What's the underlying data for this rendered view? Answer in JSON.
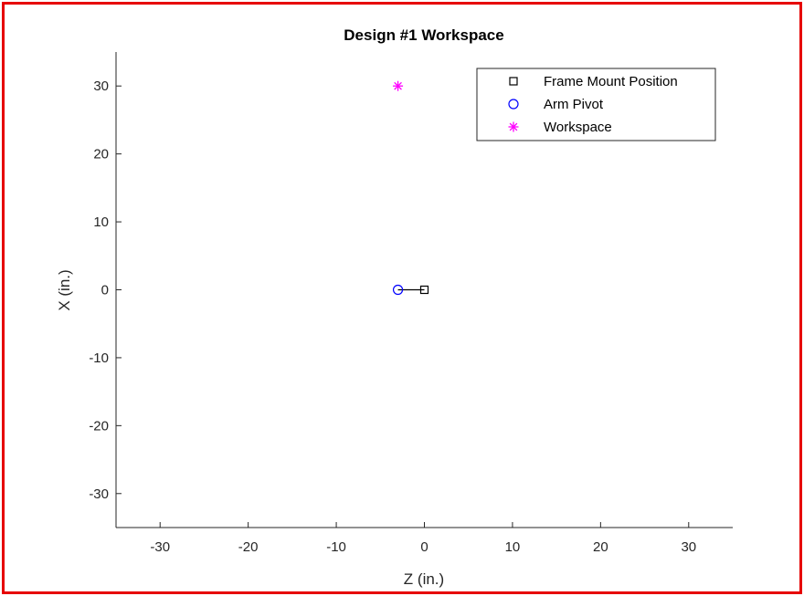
{
  "chart_data": {
    "type": "scatter",
    "title": "Design #1 Workspace",
    "xlabel": "Z (in.)",
    "ylabel": "X (in.)",
    "xlim": [
      -35,
      35
    ],
    "ylim": [
      -35,
      35
    ],
    "xticks": [
      -30,
      -20,
      -10,
      0,
      10,
      20,
      30
    ],
    "yticks": [
      -30,
      -20,
      -10,
      0,
      10,
      20,
      30
    ],
    "grid": false,
    "legend_position": "top-right",
    "series": [
      {
        "name": "Frame Mount Position",
        "marker": "square",
        "color": "#000000",
        "points": [
          [
            0,
            0
          ]
        ]
      },
      {
        "name": "Arm Pivot",
        "marker": "circle",
        "color": "#0000ff",
        "points": [
          [
            -3,
            0
          ]
        ]
      },
      {
        "name": "Workspace",
        "marker": "asterisk",
        "color": "#ff00ff",
        "points": [
          [
            -3,
            30
          ]
        ]
      }
    ],
    "links": [
      {
        "from": [
          -3,
          0
        ],
        "to": [
          0,
          0
        ],
        "color": "#000000"
      }
    ]
  }
}
